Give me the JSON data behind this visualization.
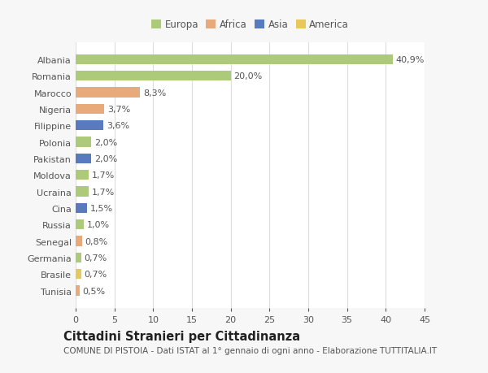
{
  "countries": [
    "Albania",
    "Romania",
    "Marocco",
    "Nigeria",
    "Filippine",
    "Polonia",
    "Pakistan",
    "Moldova",
    "Ucraina",
    "Cina",
    "Russia",
    "Senegal",
    "Germania",
    "Brasile",
    "Tunisia"
  ],
  "values": [
    40.9,
    20.0,
    8.3,
    3.7,
    3.6,
    2.0,
    2.0,
    1.7,
    1.7,
    1.5,
    1.0,
    0.8,
    0.7,
    0.7,
    0.5
  ],
  "labels": [
    "40,9%",
    "20,0%",
    "8,3%",
    "3,7%",
    "3,6%",
    "2,0%",
    "2,0%",
    "1,7%",
    "1,7%",
    "1,5%",
    "1,0%",
    "0,8%",
    "0,7%",
    "0,7%",
    "0,5%"
  ],
  "colors": [
    "#adc97a",
    "#adc97a",
    "#e8aa7a",
    "#e8aa7a",
    "#5a7abf",
    "#adc97a",
    "#5a7abf",
    "#adc97a",
    "#adc97a",
    "#5a7abf",
    "#adc97a",
    "#e8aa7a",
    "#adc97a",
    "#e8c85a",
    "#e8aa7a"
  ],
  "legend_labels": [
    "Europa",
    "Africa",
    "Asia",
    "America"
  ],
  "legend_colors": [
    "#adc97a",
    "#e8aa7a",
    "#5a7abf",
    "#e8c85a"
  ],
  "title": "Cittadini Stranieri per Cittadinanza",
  "subtitle": "COMUNE DI PISTOIA - Dati ISTAT al 1° gennaio di ogni anno - Elaborazione TUTTITALIA.IT",
  "xlim": [
    0,
    45
  ],
  "xticks": [
    0,
    5,
    10,
    15,
    20,
    25,
    30,
    35,
    40,
    45
  ],
  "background_color": "#f7f7f7",
  "plot_bg_color": "#ffffff",
  "grid_color": "#dddddd",
  "text_color": "#555555",
  "title_fontsize": 10.5,
  "subtitle_fontsize": 7.5,
  "tick_fontsize": 8,
  "label_fontsize": 8
}
